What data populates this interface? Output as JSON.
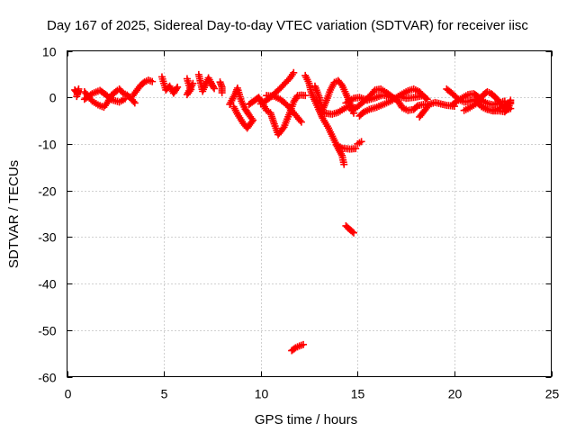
{
  "chart_data": {
    "type": "scatter",
    "title": "Day 167 of 2025, Sidereal Day-to-day VTEC variation (SDTVAR) for receiver iisc",
    "xlabel": "GPS time / hours",
    "ylabel": "SDTVAR / TECUs",
    "xlim": [
      0,
      25
    ],
    "ylim": [
      -60,
      10
    ],
    "xticks": [
      0,
      5,
      10,
      15,
      20,
      25
    ],
    "yticks": [
      -60,
      -50,
      -40,
      -30,
      -20,
      -10,
      0,
      10
    ],
    "grid": true,
    "marker": "plus",
    "color": "#ff0000",
    "segments": [
      [
        [
          0.4,
          1.6
        ],
        [
          0.55,
          0.8
        ],
        [
          0.6,
          1.8
        ],
        [
          0.5,
          0.2
        ]
      ],
      [
        [
          0.9,
          1.2
        ],
        [
          1.1,
          0.2
        ],
        [
          1.3,
          -0.8
        ],
        [
          1.6,
          -1.6
        ],
        [
          1.9,
          -2.1
        ],
        [
          2.1,
          -1.0
        ],
        [
          2.3,
          0.5
        ],
        [
          2.6,
          1.5
        ]
      ],
      [
        [
          0.9,
          -0.4
        ],
        [
          1.3,
          0.8
        ],
        [
          1.7,
          1.5
        ],
        [
          2.0,
          0.6
        ],
        [
          2.3,
          -0.5
        ],
        [
          2.7,
          -1.0
        ],
        [
          3.0,
          -0.3
        ]
      ],
      [
        [
          2.7,
          1.8
        ],
        [
          2.9,
          0.9
        ],
        [
          3.1,
          0.5
        ],
        [
          3.3,
          -0.2
        ],
        [
          3.5,
          -1.2
        ]
      ],
      [
        [
          3.4,
          0.4
        ],
        [
          3.6,
          1.5
        ],
        [
          3.8,
          2.6
        ],
        [
          4.0,
          3.3
        ],
        [
          4.2,
          3.7
        ],
        [
          4.4,
          3.4
        ]
      ],
      [
        [
          4.9,
          4.4
        ],
        [
          5.0,
          3.0
        ],
        [
          5.1,
          1.6
        ],
        [
          5.3,
          2.4
        ],
        [
          5.5,
          0.9
        ],
        [
          5.7,
          2.2
        ]
      ],
      [
        [
          6.2,
          4.0
        ],
        [
          6.3,
          2.6
        ],
        [
          6.4,
          1.7
        ],
        [
          6.2,
          0.6
        ],
        [
          6.5,
          3.0
        ]
      ],
      [
        [
          6.8,
          4.9
        ],
        [
          7.0,
          1.3
        ],
        [
          7.3,
          4.2
        ],
        [
          7.5,
          2.6
        ],
        [
          7.6,
          1.9
        ],
        [
          7.4,
          3.3
        ]
      ],
      [
        [
          7.9,
          3.3
        ],
        [
          8.0,
          2.2
        ],
        [
          8.0,
          1.0
        ]
      ],
      [
        [
          8.4,
          -1.5
        ],
        [
          8.7,
          0.9
        ],
        [
          8.8,
          2.0
        ],
        [
          9.0,
          -0.8
        ],
        [
          9.2,
          -2.5
        ],
        [
          9.4,
          -3.8
        ],
        [
          9.6,
          -4.9
        ],
        [
          9.3,
          -6.6
        ],
        [
          9.1,
          -5.6
        ],
        [
          8.8,
          -3.6
        ],
        [
          8.6,
          -2.0
        ]
      ],
      [
        [
          9.4,
          -1.5
        ],
        [
          9.7,
          -0.6
        ],
        [
          9.9,
          0.0
        ],
        [
          10.1,
          -1.3
        ],
        [
          10.3,
          -2.8
        ],
        [
          10.5,
          -3.3
        ],
        [
          10.7,
          -5.7
        ],
        [
          10.9,
          -8.0
        ],
        [
          11.2,
          -6.4
        ],
        [
          11.5,
          -3.3
        ],
        [
          11.7,
          -1.0
        ],
        [
          11.9,
          0.4
        ],
        [
          12.1,
          0.5
        ],
        [
          12.3,
          0.4
        ]
      ],
      [
        [
          10.0,
          -1.4
        ],
        [
          10.3,
          -0.6
        ],
        [
          10.6,
          0.4
        ],
        [
          10.9,
          1.5
        ],
        [
          11.2,
          2.8
        ],
        [
          11.5,
          4.1
        ],
        [
          11.7,
          5.3
        ]
      ],
      [
        [
          10.3,
          0.4
        ],
        [
          10.7,
          0.2
        ],
        [
          11.0,
          -0.4
        ],
        [
          11.3,
          -1.4
        ],
        [
          11.6,
          -2.8
        ],
        [
          11.9,
          -4.3
        ],
        [
          12.1,
          -5.3
        ]
      ],
      [
        [
          11.6,
          -54.4
        ],
        [
          11.8,
          -53.8
        ],
        [
          12.0,
          -53.4
        ],
        [
          12.2,
          -53.1
        ]
      ],
      [
        [
          12.3,
          4.7
        ],
        [
          12.5,
          3.0
        ],
        [
          12.6,
          1.2
        ],
        [
          12.8,
          -0.8
        ],
        [
          13.0,
          -2.6
        ],
        [
          13.2,
          -4.5
        ],
        [
          13.5,
          -6.6
        ],
        [
          13.8,
          -9.2
        ],
        [
          14.0,
          -11.0
        ],
        [
          14.2,
          -12.5
        ],
        [
          14.3,
          -14.4
        ]
      ],
      [
        [
          12.8,
          2.4
        ],
        [
          13.0,
          0.3
        ],
        [
          13.1,
          -1.4
        ],
        [
          13.2,
          -2.6
        ],
        [
          13.4,
          -0.6
        ],
        [
          13.6,
          1.6
        ],
        [
          13.8,
          3.2
        ],
        [
          14.0,
          3.6
        ],
        [
          14.2,
          2.6
        ],
        [
          14.4,
          0.8
        ],
        [
          14.6,
          -1.2
        ],
        [
          14.8,
          -3.4
        ]
      ],
      [
        [
          13.0,
          -2.6
        ],
        [
          13.3,
          -3.4
        ],
        [
          13.7,
          -3.6
        ],
        [
          14.0,
          -3.2
        ],
        [
          14.4,
          -2.2
        ],
        [
          14.7,
          -1.6
        ]
      ],
      [
        [
          13.9,
          -10.2
        ],
        [
          14.2,
          -10.9
        ],
        [
          14.6,
          -11.1
        ],
        [
          14.9,
          -11.0
        ]
      ],
      [
        [
          14.4,
          -27.6
        ],
        [
          14.6,
          -28.4
        ],
        [
          14.8,
          -29.1
        ]
      ],
      [
        [
          15.0,
          -10.0
        ],
        [
          15.2,
          -9.5
        ]
      ],
      [
        [
          14.4,
          -1.2
        ],
        [
          14.8,
          -0.2
        ],
        [
          15.1,
          0.0
        ],
        [
          15.5,
          -0.6
        ],
        [
          15.9,
          -0.1
        ],
        [
          16.3,
          0.5
        ],
        [
          16.6,
          0.2
        ],
        [
          16.9,
          -0.2
        ],
        [
          17.2,
          0.2
        ],
        [
          17.5,
          -0.2
        ],
        [
          17.9,
          0.0
        ],
        [
          18.3,
          0.3
        ]
      ],
      [
        [
          14.7,
          -2.8
        ],
        [
          15.0,
          -2.0
        ],
        [
          15.4,
          -0.6
        ],
        [
          15.7,
          0.6
        ],
        [
          15.9,
          1.6
        ],
        [
          16.2,
          1.8
        ],
        [
          16.5,
          1.0
        ],
        [
          16.8,
          0.1
        ],
        [
          17.1,
          -0.8
        ],
        [
          17.3,
          -2.2
        ],
        [
          17.6,
          -2.8
        ],
        [
          17.9,
          -2.6
        ],
        [
          18.1,
          -1.8
        ],
        [
          18.4,
          -1.5
        ],
        [
          18.6,
          -1.6
        ]
      ],
      [
        [
          15.1,
          -4.0
        ],
        [
          15.3,
          -3.2
        ],
        [
          15.6,
          -2.6
        ],
        [
          16.0,
          -2.1
        ],
        [
          16.4,
          -1.4
        ],
        [
          16.8,
          -0.6
        ],
        [
          17.2,
          0.5
        ],
        [
          17.6,
          1.4
        ],
        [
          17.9,
          1.8
        ],
        [
          18.2,
          1.2
        ],
        [
          18.4,
          0.3
        ],
        [
          18.6,
          -0.4
        ]
      ],
      [
        [
          18.2,
          -4.2
        ],
        [
          18.5,
          -2.6
        ],
        [
          18.7,
          -1.5
        ],
        [
          19.0,
          -1.1
        ],
        [
          19.3,
          -1.4
        ],
        [
          19.6,
          -1.7
        ],
        [
          20.0,
          -1.9
        ]
      ],
      [
        [
          19.6,
          1.8
        ],
        [
          19.9,
          0.8
        ],
        [
          20.2,
          -0.4
        ],
        [
          20.5,
          -1.0
        ],
        [
          20.8,
          -0.8
        ],
        [
          21.0,
          -0.5
        ],
        [
          21.3,
          -1.6
        ],
        [
          21.6,
          -2.4
        ],
        [
          21.9,
          -2.8
        ],
        [
          22.2,
          -2.6
        ],
        [
          22.5,
          -2.0
        ],
        [
          22.8,
          -1.2
        ]
      ],
      [
        [
          19.9,
          -1.6
        ],
        [
          20.1,
          -0.9
        ],
        [
          20.4,
          -0.1
        ],
        [
          20.7,
          0.6
        ],
        [
          21.0,
          0.8
        ],
        [
          21.2,
          0.2
        ],
        [
          21.4,
          -0.6
        ],
        [
          21.7,
          -1.3
        ],
        [
          22.0,
          -1.6
        ],
        [
          22.3,
          -1.2
        ],
        [
          22.6,
          -0.8
        ]
      ],
      [
        [
          20.5,
          -2.8
        ],
        [
          20.8,
          -2.2
        ],
        [
          21.1,
          -1.4
        ],
        [
          21.3,
          -0.4
        ],
        [
          21.5,
          0.6
        ],
        [
          21.7,
          1.2
        ],
        [
          21.9,
          0.8
        ],
        [
          22.1,
          0.1
        ],
        [
          22.3,
          -0.8
        ],
        [
          22.5,
          -1.8
        ],
        [
          22.7,
          -2.7
        ],
        [
          22.9,
          -2.4
        ]
      ],
      [
        [
          21.4,
          -2.0
        ],
        [
          21.7,
          -2.6
        ],
        [
          22.0,
          -2.9
        ],
        [
          22.3,
          -2.9
        ],
        [
          22.6,
          -3.1
        ],
        [
          22.8,
          -2.2
        ],
        [
          22.9,
          -0.6
        ],
        [
          22.9,
          -1.3
        ]
      ]
    ]
  }
}
